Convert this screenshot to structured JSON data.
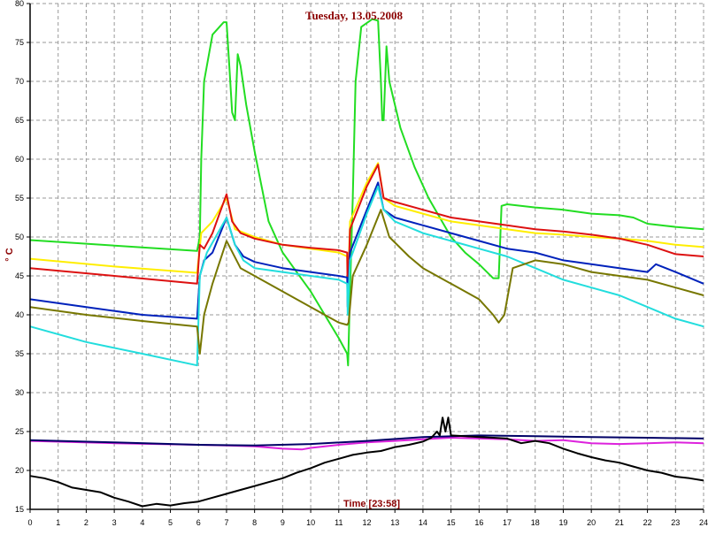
{
  "chart_data": {
    "type": "line",
    "title": "Tuesday, 13.05.2008",
    "xlabel": "Time [23:58]",
    "ylabel": "° C",
    "xlim": [
      0,
      24
    ],
    "ylim": [
      15,
      80
    ],
    "x_ticks": [
      0,
      1,
      2,
      3,
      4,
      5,
      6,
      7,
      8,
      9,
      10,
      11,
      12,
      13,
      14,
      15,
      16,
      17,
      18,
      19,
      20,
      21,
      22,
      23,
      24
    ],
    "y_ticks": [
      15,
      20,
      25,
      30,
      35,
      40,
      45,
      50,
      55,
      60,
      65,
      70,
      75,
      80
    ],
    "grid": true,
    "series": [
      {
        "color": "#22dd22",
        "points": [
          [
            0,
            49.6
          ],
          [
            3,
            48.9
          ],
          [
            5.95,
            48.2
          ],
          [
            6.05,
            50
          ],
          [
            6.1,
            60
          ],
          [
            6.2,
            70
          ],
          [
            6.5,
            76
          ],
          [
            6.9,
            77.6
          ],
          [
            7.0,
            77.6
          ],
          [
            7.1,
            72
          ],
          [
            7.2,
            66
          ],
          [
            7.3,
            65
          ],
          [
            7.4,
            73.5
          ],
          [
            7.5,
            72
          ],
          [
            7.7,
            67
          ],
          [
            8.0,
            61
          ],
          [
            8.5,
            52
          ],
          [
            9.0,
            48
          ],
          [
            9.5,
            45.5
          ],
          [
            10.0,
            43
          ],
          [
            10.5,
            40
          ],
          [
            11.0,
            37
          ],
          [
            11.3,
            35
          ],
          [
            11.33,
            33.5
          ],
          [
            11.4,
            43
          ],
          [
            11.5,
            55
          ],
          [
            11.6,
            70
          ],
          [
            11.8,
            77
          ],
          [
            12.2,
            78
          ],
          [
            12.4,
            77.8
          ],
          [
            12.5,
            70
          ],
          [
            12.55,
            65
          ],
          [
            12.6,
            65
          ],
          [
            12.7,
            74.5
          ],
          [
            12.8,
            70
          ],
          [
            13.2,
            64
          ],
          [
            13.7,
            59
          ],
          [
            14.2,
            55
          ],
          [
            15.0,
            50
          ],
          [
            15.5,
            48
          ],
          [
            16.0,
            46.5
          ],
          [
            16.5,
            44.7
          ],
          [
            16.7,
            44.7
          ],
          [
            16.8,
            54
          ],
          [
            17.0,
            54.2
          ],
          [
            18,
            53.8
          ],
          [
            19,
            53.5
          ],
          [
            20,
            53
          ],
          [
            21,
            52.8
          ],
          [
            21.5,
            52.5
          ],
          [
            22,
            51.7
          ],
          [
            23,
            51.3
          ],
          [
            24,
            51
          ]
        ]
      },
      {
        "color": "#ffee00",
        "points": [
          [
            0,
            47.2
          ],
          [
            3,
            46.2
          ],
          [
            5.95,
            45.4
          ],
          [
            6.1,
            50.5
          ],
          [
            6.5,
            52
          ],
          [
            7.0,
            55
          ],
          [
            7.3,
            51
          ],
          [
            8,
            50
          ],
          [
            9,
            49
          ],
          [
            10,
            48.5
          ],
          [
            11,
            48
          ],
          [
            11.3,
            47.5
          ],
          [
            11.32,
            42
          ],
          [
            11.4,
            52
          ],
          [
            12,
            57
          ],
          [
            12.4,
            59.5
          ],
          [
            12.6,
            55
          ],
          [
            13,
            54
          ],
          [
            14,
            53
          ],
          [
            15,
            52
          ],
          [
            16,
            51.5
          ],
          [
            17,
            51
          ],
          [
            18,
            50.5
          ],
          [
            19,
            50.3
          ],
          [
            20,
            50
          ],
          [
            21,
            49.8
          ],
          [
            22,
            49.5
          ],
          [
            23,
            49
          ],
          [
            24,
            48.7
          ]
        ]
      },
      {
        "color": "#dd1111",
        "points": [
          [
            0,
            46
          ],
          [
            3,
            45
          ],
          [
            5.95,
            44
          ],
          [
            6.05,
            49
          ],
          [
            6.2,
            48.5
          ],
          [
            6.5,
            50.5
          ],
          [
            7.0,
            55.5
          ],
          [
            7.2,
            52
          ],
          [
            7.5,
            50.5
          ],
          [
            8,
            49.8
          ],
          [
            9,
            49
          ],
          [
            10,
            48.6
          ],
          [
            11,
            48.3
          ],
          [
            11.3,
            48
          ],
          [
            11.32,
            41
          ],
          [
            11.4,
            51
          ],
          [
            12,
            56.5
          ],
          [
            12.4,
            59.3
          ],
          [
            12.6,
            55
          ],
          [
            13,
            54.5
          ],
          [
            14,
            53.5
          ],
          [
            15,
            52.5
          ],
          [
            16,
            52
          ],
          [
            17,
            51.5
          ],
          [
            18,
            51
          ],
          [
            19,
            50.7
          ],
          [
            20,
            50.3
          ],
          [
            21,
            49.8
          ],
          [
            22,
            49
          ],
          [
            23,
            47.8
          ],
          [
            24,
            47.5
          ]
        ]
      },
      {
        "color": "#0022bb",
        "points": [
          [
            0,
            42
          ],
          [
            2,
            41
          ],
          [
            4,
            40
          ],
          [
            5.95,
            39.5
          ],
          [
            6.05,
            45
          ],
          [
            6.2,
            47
          ],
          [
            6.5,
            48
          ],
          [
            7.0,
            52.5
          ],
          [
            7.3,
            49
          ],
          [
            7.6,
            47.5
          ],
          [
            8,
            46.8
          ],
          [
            9,
            46
          ],
          [
            10,
            45.5
          ],
          [
            11,
            45
          ],
          [
            11.3,
            44.8
          ],
          [
            11.32,
            41
          ],
          [
            11.4,
            48
          ],
          [
            12,
            53.5
          ],
          [
            12.4,
            57
          ],
          [
            12.6,
            53.5
          ],
          [
            13,
            52.5
          ],
          [
            14,
            51.5
          ],
          [
            15,
            50.5
          ],
          [
            16,
            49.5
          ],
          [
            17,
            48.5
          ],
          [
            18,
            48
          ],
          [
            19,
            47
          ],
          [
            20,
            46.5
          ],
          [
            21,
            46
          ],
          [
            22,
            45.5
          ],
          [
            22.3,
            46.5
          ],
          [
            23,
            45.5
          ],
          [
            24,
            44
          ]
        ]
      },
      {
        "color": "#22dddd",
        "points": [
          [
            0,
            38.5
          ],
          [
            2,
            36.5
          ],
          [
            4,
            35
          ],
          [
            5.95,
            33.5
          ],
          [
            6.05,
            45
          ],
          [
            6.3,
            48
          ],
          [
            7.0,
            52.5
          ],
          [
            7.3,
            49
          ],
          [
            7.6,
            47
          ],
          [
            8,
            46
          ],
          [
            9,
            45.5
          ],
          [
            10,
            45
          ],
          [
            11,
            44.5
          ],
          [
            11.3,
            44
          ],
          [
            11.32,
            40
          ],
          [
            11.4,
            47
          ],
          [
            12,
            53
          ],
          [
            12.4,
            56.5
          ],
          [
            12.6,
            53.5
          ],
          [
            13,
            52
          ],
          [
            14,
            50.5
          ],
          [
            15,
            49.5
          ],
          [
            16,
            48.5
          ],
          [
            17,
            47.5
          ],
          [
            18,
            46
          ],
          [
            19,
            44.5
          ],
          [
            20,
            43.5
          ],
          [
            21,
            42.5
          ],
          [
            22,
            41
          ],
          [
            23,
            39.5
          ],
          [
            24,
            38.5
          ]
        ]
      },
      {
        "color": "#777700",
        "points": [
          [
            0,
            41
          ],
          [
            2,
            40
          ],
          [
            4,
            39.2
          ],
          [
            5.95,
            38.5
          ],
          [
            6.05,
            35
          ],
          [
            6.2,
            40
          ],
          [
            6.5,
            44
          ],
          [
            7.0,
            49.5
          ],
          [
            7.5,
            46
          ],
          [
            8,
            45
          ],
          [
            9,
            43
          ],
          [
            10,
            41
          ],
          [
            11,
            39
          ],
          [
            11.3,
            38.7
          ],
          [
            11.35,
            39
          ],
          [
            11.5,
            45
          ],
          [
            12,
            49
          ],
          [
            12.5,
            53.5
          ],
          [
            12.8,
            50
          ],
          [
            13.5,
            47.5
          ],
          [
            14,
            46
          ],
          [
            15,
            44
          ],
          [
            16,
            42
          ],
          [
            16.5,
            40
          ],
          [
            16.7,
            39
          ],
          [
            16.9,
            40
          ],
          [
            17.2,
            46
          ],
          [
            18,
            47
          ],
          [
            19,
            46.5
          ],
          [
            20,
            45.5
          ],
          [
            21,
            45
          ],
          [
            22,
            44.5
          ],
          [
            23,
            43.5
          ],
          [
            24,
            42.5
          ]
        ]
      },
      {
        "color": "#dd22dd",
        "points": [
          [
            0,
            23.8
          ],
          [
            3,
            23.5
          ],
          [
            6,
            23.3
          ],
          [
            7,
            23.2
          ],
          [
            8,
            23.1
          ],
          [
            9,
            22.8
          ],
          [
            9.7,
            22.7
          ],
          [
            10,
            22.9
          ],
          [
            11,
            23.3
          ],
          [
            12,
            23.6
          ],
          [
            13,
            23.8
          ],
          [
            14,
            24
          ],
          [
            15,
            24.2
          ],
          [
            16,
            24.1
          ],
          [
            17,
            24
          ],
          [
            18,
            23.8
          ],
          [
            19,
            23.9
          ],
          [
            20,
            23.5
          ],
          [
            21,
            23.4
          ],
          [
            22,
            23.5
          ],
          [
            23,
            23.6
          ],
          [
            24,
            23.5
          ]
        ]
      },
      {
        "color": "#000066",
        "points": [
          [
            0,
            23.9
          ],
          [
            3,
            23.6
          ],
          [
            6,
            23.3
          ],
          [
            8,
            23.2
          ],
          [
            10,
            23.4
          ],
          [
            12,
            23.8
          ],
          [
            14,
            24.3
          ],
          [
            16,
            24.5
          ],
          [
            18,
            24.4
          ],
          [
            20,
            24.3
          ],
          [
            22,
            24.2
          ],
          [
            24,
            24.1
          ]
        ]
      },
      {
        "color": "#000000",
        "points": [
          [
            0,
            19.3
          ],
          [
            0.5,
            19
          ],
          [
            1,
            18.5
          ],
          [
            1.5,
            17.8
          ],
          [
            2,
            17.5
          ],
          [
            2.5,
            17.2
          ],
          [
            3,
            16.5
          ],
          [
            3.5,
            16
          ],
          [
            4,
            15.4
          ],
          [
            4.5,
            15.7
          ],
          [
            5,
            15.5
          ],
          [
            5.5,
            15.8
          ],
          [
            6,
            16
          ],
          [
            6.5,
            16.5
          ],
          [
            7,
            17
          ],
          [
            7.5,
            17.5
          ],
          [
            8,
            18
          ],
          [
            8.5,
            18.5
          ],
          [
            9,
            19
          ],
          [
            9.5,
            19.7
          ],
          [
            10,
            20.3
          ],
          [
            10.5,
            21
          ],
          [
            11,
            21.5
          ],
          [
            11.5,
            22
          ],
          [
            12,
            22.3
          ],
          [
            12.5,
            22.5
          ],
          [
            13,
            23
          ],
          [
            13.5,
            23.3
          ],
          [
            14,
            23.7
          ],
          [
            14.3,
            24.2
          ],
          [
            14.5,
            25
          ],
          [
            14.6,
            24.5
          ],
          [
            14.7,
            26.8
          ],
          [
            14.8,
            25
          ],
          [
            14.9,
            26.8
          ],
          [
            15.0,
            24.5
          ],
          [
            15.5,
            24.4
          ],
          [
            16,
            24.3
          ],
          [
            16.5,
            24.2
          ],
          [
            17,
            24.1
          ],
          [
            17.5,
            23.5
          ],
          [
            18,
            23.8
          ],
          [
            18.5,
            23.5
          ],
          [
            19,
            22.8
          ],
          [
            19.5,
            22.2
          ],
          [
            20,
            21.7
          ],
          [
            20.5,
            21.3
          ],
          [
            21,
            21
          ],
          [
            21.5,
            20.5
          ],
          [
            22,
            20
          ],
          [
            22.5,
            19.7
          ],
          [
            23,
            19.2
          ],
          [
            23.5,
            19
          ],
          [
            24,
            18.7
          ]
        ]
      }
    ]
  }
}
